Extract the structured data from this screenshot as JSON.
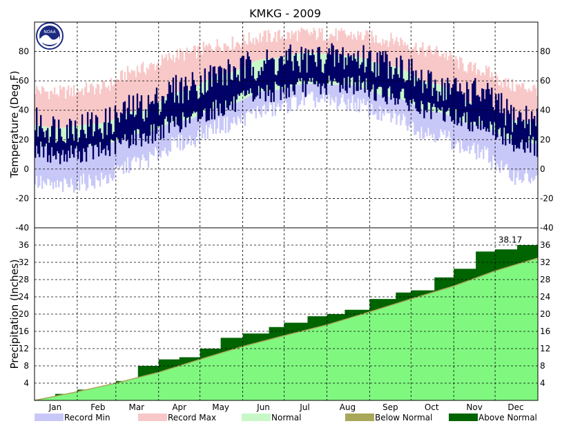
{
  "chart_data": {
    "type": "area",
    "title": "KMKG - 2009",
    "months": [
      "Jan",
      "Feb",
      "Mar",
      "Apr",
      "May",
      "Jun",
      "Jul",
      "Aug",
      "Sep",
      "Oct",
      "Nov",
      "Dec"
    ],
    "temperature": {
      "ylabel": "Temperature (Deg.F)",
      "ylim": [
        -40,
        100
      ],
      "yticks": [
        "-40",
        "-20",
        "0",
        "20",
        "40",
        "60",
        "80"
      ],
      "record_max_monthly": [
        52,
        55,
        68,
        78,
        85,
        90,
        92,
        91,
        88,
        80,
        68,
        56
      ],
      "record_min_monthly": [
        -12,
        -8,
        5,
        18,
        30,
        40,
        47,
        45,
        35,
        24,
        12,
        -5
      ],
      "normal_high_monthly": [
        28,
        31,
        40,
        53,
        65,
        75,
        79,
        77,
        70,
        58,
        45,
        33
      ],
      "normal_low_monthly": [
        14,
        16,
        24,
        33,
        43,
        53,
        58,
        57,
        49,
        39,
        30,
        19
      ],
      "observed_high_monthly": [
        28,
        30,
        42,
        55,
        65,
        72,
        75,
        76,
        72,
        56,
        52,
        35
      ],
      "observed_low_monthly": [
        10,
        12,
        22,
        32,
        42,
        52,
        56,
        58,
        50,
        38,
        32,
        18
      ]
    },
    "precipitation": {
      "ylabel": "Precipitation (Inches)",
      "ylim": [
        0,
        40
      ],
      "yticks": [
        "4",
        "8",
        "12",
        "16",
        "20",
        "24",
        "28",
        "32",
        "36"
      ],
      "total_label": "38.17",
      "cumulative_observed": {
        "day": [
          0,
          15,
          31,
          59,
          75,
          90,
          105,
          120,
          135,
          151,
          170,
          181,
          198,
          212,
          225,
          243,
          262,
          273,
          290,
          304,
          320,
          334,
          350,
          365
        ],
        "value": [
          0,
          1.5,
          2.5,
          4.5,
          8.0,
          9.5,
          10.0,
          12.0,
          14.5,
          15.5,
          17.0,
          18.0,
          19.5,
          20.0,
          21.0,
          23.5,
          25.0,
          25.5,
          28.5,
          30.5,
          34.5,
          35.0,
          36.0,
          38.17
        ]
      },
      "cumulative_normal": {
        "day": [
          0,
          31,
          59,
          90,
          120,
          151,
          181,
          212,
          243,
          273,
          304,
          334,
          365
        ],
        "value": [
          0,
          2.0,
          4.0,
          6.5,
          9.5,
          12.5,
          15.0,
          17.5,
          20.5,
          23.5,
          26.5,
          30.0,
          33.0
        ]
      }
    },
    "legend": [
      {
        "label": "Record Min",
        "color": "#c8c8f8"
      },
      {
        "label": "Record Max",
        "color": "#f8c8c8"
      },
      {
        "label": "Normal",
        "color": "#c8f8c8"
      },
      {
        "label": "Below Normal",
        "color": "#a8a858"
      },
      {
        "label": "Above Normal",
        "color": "#006400"
      }
    ],
    "colors": {
      "record_min": "#c8c8f8",
      "record_max": "#f8c8c8",
      "normal": "#c8f8c8",
      "observed": "#000066",
      "precip_normal": "#80f880",
      "precip_above": "#006400",
      "precip_below": "#a8a858"
    },
    "grid": true,
    "legend_position": "bottom"
  }
}
